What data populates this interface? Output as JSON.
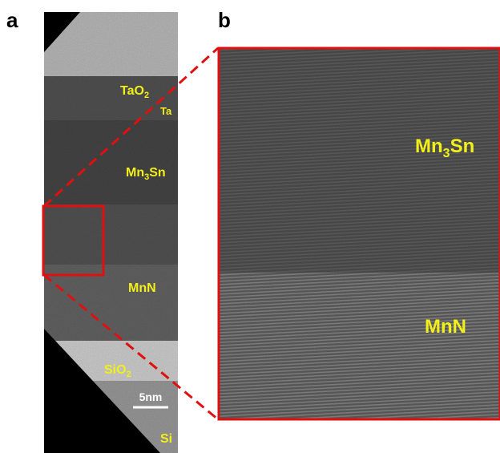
{
  "panel_a": {
    "label": "a",
    "layers": [
      {
        "name": [
          "TaO",
          "2"
        ]
      },
      {
        "name": [
          "Ta"
        ]
      },
      {
        "name": [
          "Mn",
          "3",
          "Sn"
        ]
      },
      {
        "name": [
          "MnN"
        ]
      },
      {
        "name": [
          "SiO",
          "2"
        ]
      },
      {
        "name": [
          "Si"
        ]
      }
    ],
    "scale_bar": "5nm"
  },
  "panel_b": {
    "label": "b",
    "layers": [
      {
        "name": [
          "Mn",
          "3",
          "Sn"
        ]
      },
      {
        "name": [
          "MnN"
        ]
      }
    ]
  }
}
